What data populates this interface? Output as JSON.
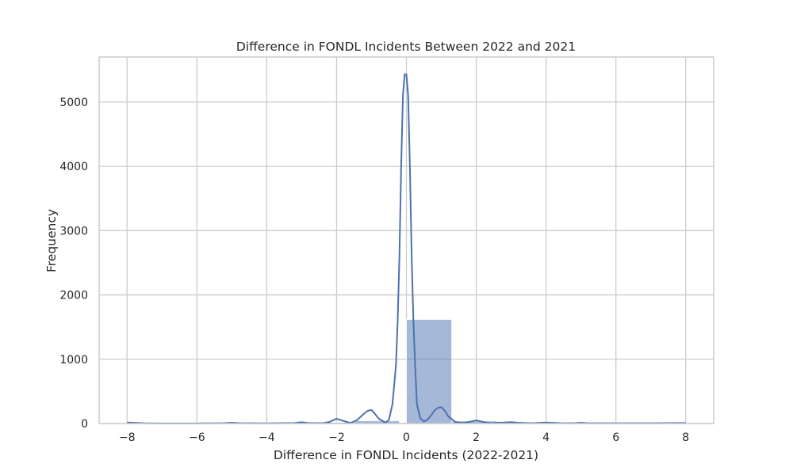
{
  "chart_data": {
    "type": "histogram",
    "title": "Difference in FONDL Incidents Between 2022 and 2021",
    "xlabel": "Difference in FONDL Incidents (2022-2021)",
    "ylabel": "Frequency",
    "xlim": [
      -8.8,
      8.8
    ],
    "ylim": [
      0,
      5700
    ],
    "x_ticks": [
      -8,
      -6,
      -4,
      -2,
      0,
      2,
      4,
      6,
      8
    ],
    "x_tick_labels": [
      "−8",
      "−6",
      "−4",
      "−2",
      "0",
      "2",
      "4",
      "6",
      "8"
    ],
    "y_ticks": [
      0,
      1000,
      2000,
      3000,
      4000,
      5000
    ],
    "y_tick_labels": [
      "0",
      "1000",
      "2000",
      "3000",
      "4000",
      "5000"
    ],
    "grid": true,
    "bins": [
      {
        "x0": -8.0,
        "x1": -6.7,
        "value": 12
      },
      {
        "x0": -6.7,
        "x1": -5.4,
        "value": 4
      },
      {
        "x0": -5.4,
        "x1": -4.1,
        "value": 8
      },
      {
        "x0": -4.1,
        "x1": -2.8,
        "value": 12
      },
      {
        "x0": -2.8,
        "x1": -1.5,
        "value": 20
      },
      {
        "x0": -1.5,
        "x1": -0.2,
        "value": 45
      },
      {
        "x0": -0.2,
        "x1": 0.0,
        "value": 0
      },
      {
        "x0": 0.0,
        "x1": 1.3,
        "value": 1620
      },
      {
        "x0": 1.3,
        "x1": 2.6,
        "value": 40
      },
      {
        "x0": 2.6,
        "x1": 3.9,
        "value": 12
      },
      {
        "x0": 3.9,
        "x1": 5.2,
        "value": 8
      },
      {
        "x0": 5.2,
        "x1": 6.5,
        "value": 4
      },
      {
        "x0": 6.5,
        "x1": 8.0,
        "value": 6
      }
    ],
    "kde": {
      "x": [
        -8,
        -7.5,
        -7,
        -6,
        -5.2,
        -5,
        -4.8,
        -4,
        -3.2,
        -3,
        -2.8,
        -2.4,
        -2.2,
        -2,
        -1.8,
        -1.6,
        -1.4,
        -1.2,
        -1.1,
        -1,
        -0.9,
        -0.8,
        -0.6,
        -0.5,
        -0.4,
        -0.3,
        -0.25,
        -0.2,
        -0.15,
        -0.1,
        -0.05,
        0,
        0.05,
        0.1,
        0.15,
        0.2,
        0.25,
        0.3,
        0.4,
        0.5,
        0.6,
        0.7,
        0.8,
        0.9,
        1,
        1.1,
        1.2,
        1.4,
        1.6,
        1.8,
        2,
        2.2,
        2.4,
        2.8,
        3,
        3.2,
        3.6,
        4,
        4.4,
        4.8,
        5,
        5.2,
        6,
        7,
        8
      ],
      "y": [
        15,
        5,
        2,
        2,
        6,
        12,
        6,
        3,
        8,
        20,
        8,
        5,
        25,
        75,
        40,
        8,
        60,
        160,
        200,
        210,
        150,
        80,
        12,
        60,
        300,
        900,
        1600,
        2600,
        4000,
        5100,
        5430,
        5430,
        5100,
        4000,
        2600,
        1600,
        900,
        300,
        80,
        30,
        60,
        120,
        200,
        245,
        255,
        200,
        110,
        25,
        10,
        25,
        50,
        25,
        8,
        15,
        22,
        12,
        5,
        15,
        6,
        5,
        12,
        5,
        4,
        4,
        8
      ]
    },
    "colors": {
      "bar_fill": "#4c72b0",
      "bar_opacity": 0.5,
      "kde_line": "#4c72b0",
      "grid": "#cccccc",
      "spine": "#cccccc",
      "text": "#262626"
    }
  }
}
